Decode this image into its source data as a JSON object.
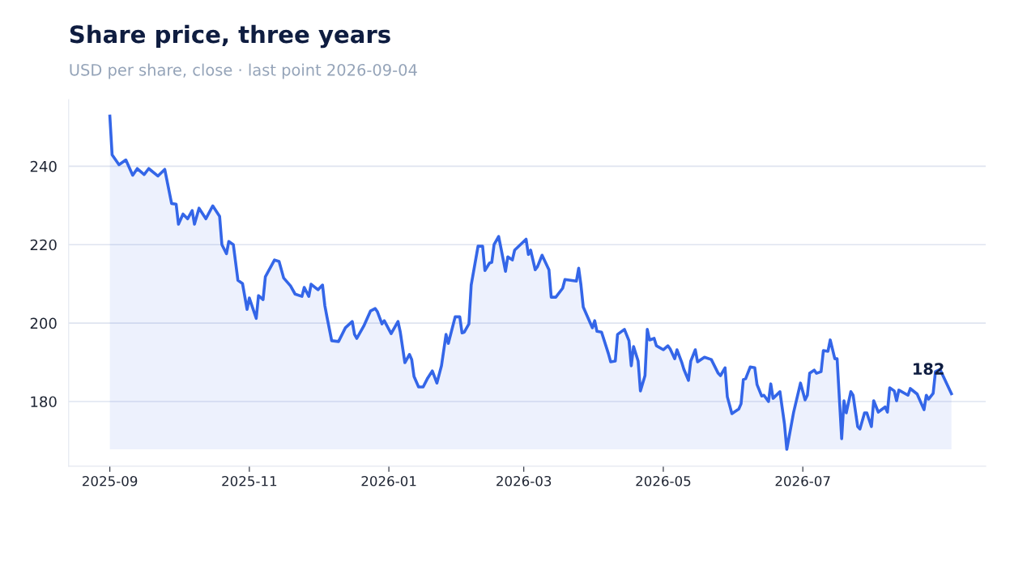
{
  "chart_data": {
    "type": "area",
    "title": "Share price, three years",
    "subtitle": "USD per share, close · last point 2026-09-04",
    "x": [
      "2025-09-01",
      "2025-09-02",
      "2025-09-05",
      "2025-09-08",
      "2025-09-11",
      "2025-09-13",
      "2025-09-16",
      "2025-09-18",
      "2025-09-22",
      "2025-09-25",
      "2025-09-28",
      "2025-09-30",
      "2025-10-01",
      "2025-10-03",
      "2025-10-05",
      "2025-10-07",
      "2025-10-08",
      "2025-10-10",
      "2025-10-13",
      "2025-10-16",
      "2025-10-19",
      "2025-10-20",
      "2025-10-22",
      "2025-10-23",
      "2025-10-25",
      "2025-10-27",
      "2025-10-29",
      "2025-10-31",
      "2025-11-01",
      "2025-11-04",
      "2025-11-05",
      "2025-11-07",
      "2025-11-08",
      "2025-11-12",
      "2025-11-14",
      "2025-11-16",
      "2025-11-19",
      "2025-11-21",
      "2025-11-24",
      "2025-11-25",
      "2025-11-27",
      "2025-11-28",
      "2025-12-01",
      "2025-12-03",
      "2025-12-04",
      "2025-12-05",
      "2025-12-07",
      "2025-12-10",
      "2025-12-13",
      "2025-12-16",
      "2025-12-17",
      "2025-12-18",
      "2025-12-21",
      "2025-12-24",
      "2025-12-26",
      "2025-12-27",
      "2025-12-29",
      "2025-12-30",
      "2026-01-02",
      "2026-01-05",
      "2026-01-06",
      "2026-01-08",
      "2026-01-10",
      "2026-01-11",
      "2026-01-12",
      "2026-01-14",
      "2026-01-16",
      "2026-01-18",
      "2026-01-20",
      "2026-01-22",
      "2026-01-24",
      "2026-01-26",
      "2026-01-27",
      "2026-01-30",
      "2026-02-01",
      "2026-02-02",
      "2026-02-03",
      "2026-02-05",
      "2026-02-06",
      "2026-02-09",
      "2026-02-11",
      "2026-02-12",
      "2026-02-14",
      "2026-02-15",
      "2026-02-16",
      "2026-02-18",
      "2026-02-19",
      "2026-02-21",
      "2026-02-22",
      "2026-02-24",
      "2026-02-25",
      "2026-03-02",
      "2026-03-03",
      "2026-03-04",
      "2026-03-06",
      "2026-03-07",
      "2026-03-09",
      "2026-03-12",
      "2026-03-13",
      "2026-03-15",
      "2026-03-18",
      "2026-03-19",
      "2026-03-24",
      "2026-03-25",
      "2026-03-26",
      "2026-03-27",
      "2026-03-31",
      "2026-04-01",
      "2026-04-02",
      "2026-04-04",
      "2026-04-07",
      "2026-04-08",
      "2026-04-10",
      "2026-04-11",
      "2026-04-14",
      "2026-04-16",
      "2026-04-17",
      "2026-04-18",
      "2026-04-20",
      "2026-04-21",
      "2026-04-23",
      "2026-04-24",
      "2026-04-25",
      "2026-04-27",
      "2026-04-28",
      "2026-05-01",
      "2026-05-03",
      "2026-05-04",
      "2026-05-06",
      "2026-05-07",
      "2026-05-09",
      "2026-05-10",
      "2026-05-12",
      "2026-05-13",
      "2026-05-15",
      "2026-05-16",
      "2026-05-19",
      "2026-05-22",
      "2026-05-25",
      "2026-05-26",
      "2026-05-28",
      "2026-05-29",
      "2026-05-31",
      "2026-06-03",
      "2026-06-04",
      "2026-06-05",
      "2026-06-06",
      "2026-06-08",
      "2026-06-10",
      "2026-06-11",
      "2026-06-13",
      "2026-06-14",
      "2026-06-16",
      "2026-06-17",
      "2026-06-18",
      "2026-06-21",
      "2026-06-23",
      "2026-06-24",
      "2026-06-27",
      "2026-06-30",
      "2026-07-02",
      "2026-07-03",
      "2026-07-04",
      "2026-07-06",
      "2026-07-07",
      "2026-07-09",
      "2026-07-10",
      "2026-07-12",
      "2026-07-13",
      "2026-07-15",
      "2026-07-16",
      "2026-07-18",
      "2026-07-19",
      "2026-07-20",
      "2026-07-22",
      "2026-07-23",
      "2026-07-25",
      "2026-07-26",
      "2026-07-28",
      "2026-07-29",
      "2026-07-31",
      "2026-08-01",
      "2026-08-03",
      "2026-08-06",
      "2026-08-07",
      "2026-08-08",
      "2026-08-10",
      "2026-08-11",
      "2026-08-12",
      "2026-08-16",
      "2026-08-17",
      "2026-08-20",
      "2026-08-23",
      "2026-08-24",
      "2026-08-25",
      "2026-08-27",
      "2026-08-28",
      "2026-08-30",
      "2026-09-04"
    ],
    "series": [
      {
        "color": "#3466e8",
        "values": [
          252.8,
          242.9,
          240.4,
          241.6,
          237.7,
          239.4,
          237.9,
          239.4,
          237.5,
          239.2,
          230.5,
          230.3,
          225.2,
          227.8,
          226.6,
          228.7,
          225.2,
          229.3,
          226.6,
          229.9,
          227.2,
          220.0,
          217.7,
          220.8,
          220.0,
          210.9,
          210.1,
          203.5,
          206.4,
          201.2,
          207.0,
          206.0,
          211.8,
          216.1,
          215.7,
          211.5,
          209.5,
          207.4,
          206.8,
          209.1,
          206.8,
          209.9,
          208.5,
          209.7,
          204.5,
          201.4,
          195.5,
          195.3,
          198.8,
          200.4,
          197.1,
          196.1,
          199.2,
          203.1,
          203.7,
          202.9,
          199.8,
          200.6,
          197.3,
          200.4,
          197.7,
          189.9,
          192.0,
          190.7,
          186.4,
          183.7,
          183.7,
          186.0,
          187.8,
          184.7,
          189.1,
          197.1,
          194.8,
          201.6,
          201.6,
          197.5,
          197.7,
          199.8,
          209.7,
          219.6,
          219.6,
          213.4,
          215.3,
          215.5,
          220.0,
          222.1,
          219.2,
          213.2,
          216.9,
          216.1,
          218.6,
          221.4,
          217.5,
          218.6,
          213.6,
          214.4,
          217.3,
          213.6,
          206.6,
          206.6,
          208.9,
          211.1,
          210.7,
          214.0,
          209.7,
          204.1,
          198.8,
          200.6,
          197.9,
          197.7,
          192.2,
          190.1,
          190.3,
          197.1,
          198.4,
          195.5,
          189.1,
          194.0,
          190.3,
          182.7,
          186.6,
          198.4,
          195.7,
          196.1,
          194.2,
          193.2,
          194.2,
          193.4,
          190.9,
          193.2,
          190.1,
          188.2,
          185.4,
          190.3,
          193.2,
          190.1,
          191.3,
          190.7,
          187.2,
          186.6,
          188.6,
          181.2,
          176.9,
          178.1,
          179.4,
          185.6,
          185.8,
          188.8,
          188.6,
          184.3,
          181.4,
          181.6,
          180.0,
          184.5,
          180.8,
          182.5,
          174.2,
          167.8,
          177.3,
          184.7,
          180.4,
          181.6,
          187.2,
          188.0,
          187.2,
          187.6,
          193.0,
          192.8,
          195.7,
          190.9,
          190.9,
          170.5,
          180.2,
          177.1,
          182.5,
          181.6,
          173.6,
          173.0,
          177.1,
          177.1,
          173.6,
          180.2,
          177.3,
          178.6,
          177.3,
          183.5,
          182.7,
          180.2,
          182.9,
          181.6,
          183.3,
          181.9,
          177.9,
          181.6,
          180.6,
          182.1,
          187.6,
          188.2,
          182
        ]
      }
    ],
    "xlim": [
      "2025-08-14",
      "2026-09-19"
    ],
    "xticks": [
      "2025-09",
      "2025-11",
      "2026-01",
      "2026-03",
      "2026-05",
      "2026-07"
    ],
    "ylim": [
      163.5,
      257
    ],
    "yticks": [
      180,
      200,
      220,
      240
    ],
    "grid": "y",
    "annotations": [
      {
        "text": "182",
        "x": "2026-09-04",
        "y": 182
      }
    ]
  }
}
